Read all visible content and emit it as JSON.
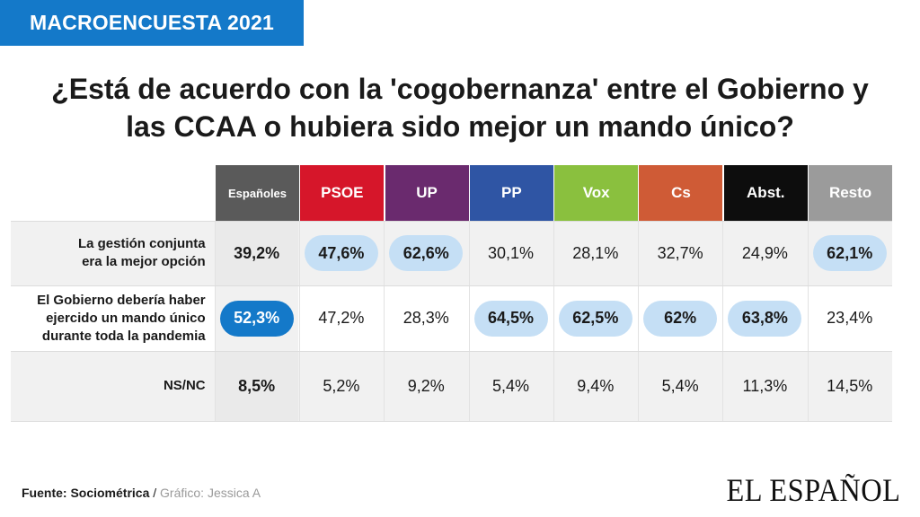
{
  "badge": "MACROENCUESTA 2021",
  "title_lines": [
    "¿Está de acuerdo con la 'cogobernanza' entre el Gobierno y",
    "las CCAA o hubiera sido mejor un mando único?"
  ],
  "chart_data": {
    "type": "table",
    "columns": [
      {
        "label": "Españoles",
        "color": "#5a5a5a"
      },
      {
        "label": "PSOE",
        "color": "#d6162a"
      },
      {
        "label": "UP",
        "color": "#6a2a6e"
      },
      {
        "label": "PP",
        "color": "#2f55a4"
      },
      {
        "label": "Vox",
        "color": "#8ac03e"
      },
      {
        "label": "Cs",
        "color": "#cf5b36"
      },
      {
        "label": "Abst.",
        "color": "#0d0d0d"
      },
      {
        "label": "Resto",
        "color": "#9b9b9b"
      }
    ],
    "rows": [
      {
        "label": "La gestión conjunta\nera la mejor opción",
        "cells": [
          {
            "value": "39,2%",
            "highlight": "none"
          },
          {
            "value": "47,6%",
            "highlight": "light"
          },
          {
            "value": "62,6%",
            "highlight": "light"
          },
          {
            "value": "30,1%",
            "highlight": "none"
          },
          {
            "value": "28,1%",
            "highlight": "none"
          },
          {
            "value": "32,7%",
            "highlight": "none"
          },
          {
            "value": "24,9%",
            "highlight": "none"
          },
          {
            "value": "62,1%",
            "highlight": "light"
          }
        ]
      },
      {
        "label": "El Gobierno debería haber\nejercido un mando único\ndurante toda la pandemia",
        "cells": [
          {
            "value": "52,3%",
            "highlight": "dark"
          },
          {
            "value": "47,2%",
            "highlight": "none"
          },
          {
            "value": "28,3%",
            "highlight": "none"
          },
          {
            "value": "64,5%",
            "highlight": "light"
          },
          {
            "value": "62,5%",
            "highlight": "light"
          },
          {
            "value": "62%",
            "highlight": "light"
          },
          {
            "value": "63,8%",
            "highlight": "light"
          },
          {
            "value": "23,4%",
            "highlight": "none"
          }
        ]
      },
      {
        "label": "NS/NC",
        "cells": [
          {
            "value": "8,5%",
            "highlight": "none"
          },
          {
            "value": "5,2%",
            "highlight": "none"
          },
          {
            "value": "9,2%",
            "highlight": "none"
          },
          {
            "value": "5,4%",
            "highlight": "none"
          },
          {
            "value": "9,4%",
            "highlight": "none"
          },
          {
            "value": "5,4%",
            "highlight": "none"
          },
          {
            "value": "11,3%",
            "highlight": "none"
          },
          {
            "value": "14,5%",
            "highlight": "none"
          }
        ]
      }
    ]
  },
  "footer": {
    "source": "Fuente: Sociométrica",
    "separator": " / ",
    "credit": "Gráfico: Jessica A"
  },
  "logo": "EL ESPAÑOL"
}
